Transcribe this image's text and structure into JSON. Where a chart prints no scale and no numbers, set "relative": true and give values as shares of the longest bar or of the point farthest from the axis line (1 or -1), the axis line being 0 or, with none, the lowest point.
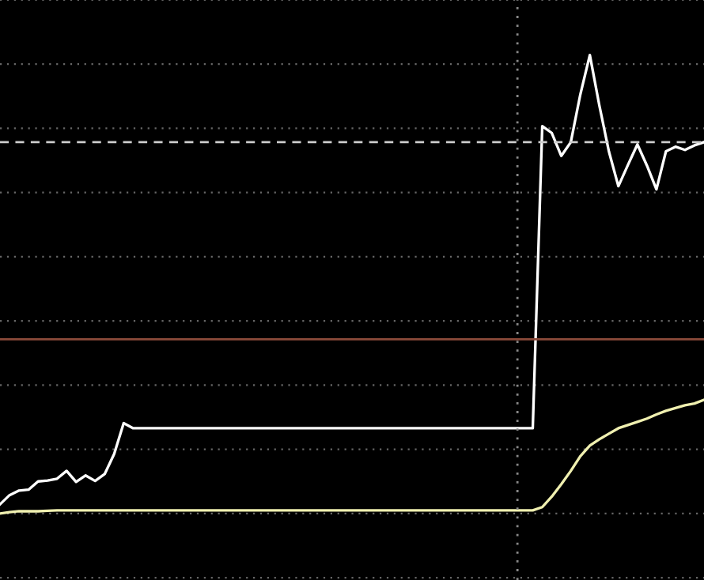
{
  "chart_data": {
    "type": "line",
    "relative": true,
    "grid": "y",
    "legend": false,
    "categories": [
      null,
      null,
      null,
      null,
      null,
      null,
      null,
      null,
      null,
      null,
      null,
      null,
      null,
      null,
      null,
      null,
      null,
      null,
      null,
      null,
      null,
      null,
      null,
      null,
      null,
      null,
      null,
      null,
      null,
      null,
      null,
      null,
      null,
      null,
      null,
      null,
      null,
      null,
      null,
      null,
      null,
      null,
      null,
      null,
      null,
      null,
      null,
      null,
      null,
      null,
      null,
      null,
      null,
      null,
      null,
      null,
      null,
      null,
      null,
      null,
      null,
      null,
      null,
      null,
      null,
      null,
      null,
      null,
      null,
      null,
      null,
      null,
      null,
      null,
      null
    ],
    "series": [
      {
        "color": "#ffffff",
        "values": [
          0.02,
          0.04,
          0.05,
          0.052,
          0.07,
          0.072,
          0.076,
          0.093,
          0.069,
          0.083,
          0.071,
          0.086,
          0.13,
          0.197,
          0.186,
          0.186,
          0.186,
          0.186,
          0.186,
          0.186,
          0.186,
          0.186,
          0.186,
          0.186,
          0.186,
          0.186,
          0.186,
          0.186,
          0.186,
          0.186,
          0.186,
          0.186,
          0.186,
          0.186,
          0.186,
          0.186,
          0.186,
          0.186,
          0.186,
          0.186,
          0.186,
          0.186,
          0.186,
          0.186,
          0.186,
          0.186,
          0.186,
          0.186,
          0.186,
          0.186,
          0.186,
          0.186,
          0.186,
          0.186,
          0.186,
          0.186,
          0.186,
          0.845,
          0.83,
          0.78,
          0.81,
          0.914,
          1,
          0.89,
          0.79,
          0.714,
          0.76,
          0.805,
          0.759,
          0.707,
          0.79,
          0.8,
          0.793,
          0.803,
          0.81
        ]
      },
      {
        "color": "#f0f0b0",
        "values": [
          0,
          0.003,
          0.005,
          0.005,
          0.005,
          0.006,
          0.007,
          0.007,
          0.007,
          0.007,
          0.007,
          0.007,
          0.007,
          0.007,
          0.007,
          0.007,
          0.007,
          0.007,
          0.007,
          0.007,
          0.007,
          0.007,
          0.007,
          0.007,
          0.007,
          0.007,
          0.007,
          0.007,
          0.007,
          0.007,
          0.007,
          0.007,
          0.007,
          0.007,
          0.007,
          0.007,
          0.007,
          0.007,
          0.007,
          0.007,
          0.007,
          0.007,
          0.007,
          0.007,
          0.007,
          0.007,
          0.007,
          0.007,
          0.007,
          0.007,
          0.007,
          0.007,
          0.007,
          0.007,
          0.007,
          0.007,
          0.007,
          0.014,
          0.037,
          0.064,
          0.093,
          0.125,
          0.148,
          0.162,
          0.174,
          0.186,
          0.193,
          0.2,
          0.207,
          0.216,
          0.224,
          0.23,
          0.236,
          0.24,
          0.248
        ]
      }
    ],
    "ref_lines": [
      {
        "axis": "y",
        "value": 0.38,
        "color": "#8b4a3a",
        "line_style": "solid"
      },
      {
        "axis": "y",
        "value": 0.81,
        "color": "#cccccc",
        "line_style": "dashed"
      }
    ]
  }
}
